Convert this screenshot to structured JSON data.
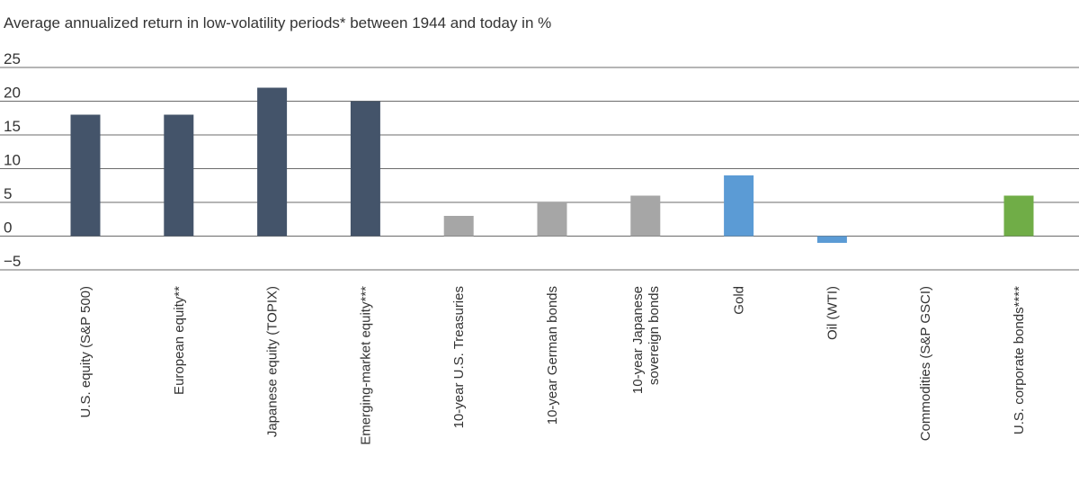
{
  "chart_data": {
    "type": "bar",
    "title": "Average annualized return in low-volatility periods* between 1944 and today in %",
    "xlabel": "",
    "ylabel": "",
    "ylim": [
      -5,
      25
    ],
    "yticks": [
      "25",
      "20",
      "15",
      "10",
      "5",
      "0",
      "−5"
    ],
    "ytick_values": [
      25,
      20,
      15,
      10,
      5,
      0,
      -5
    ],
    "grid": true,
    "categories": [
      "U.S. equity (S&P 500)",
      "European equity**",
      "Japanese equity (TOPIX)",
      "Emerging-market equity***",
      "10-year U.S. Treasuries",
      "10-year German bonds",
      "10-year Japanese sovereign bonds",
      "Gold",
      "Oil (WTI)",
      "Commodities (S&P GSCI)",
      "U.S. corporate bonds****"
    ],
    "category_lines": [
      [
        "U.S. equity (S&P 500)"
      ],
      [
        "European equity**"
      ],
      [
        "Japanese equity (TOPIX)"
      ],
      [
        "Emerging-market equity***"
      ],
      [
        "10-year U.S. Treasuries"
      ],
      [
        "10-year German bonds"
      ],
      [
        "10-year Japanese",
        "sovereign bonds"
      ],
      [
        "Gold"
      ],
      [
        "Oil (WTI)"
      ],
      [
        "Commodities (S&P GSCI)"
      ],
      [
        "U.S. corporate bonds****"
      ]
    ],
    "values": [
      18,
      18,
      22,
      20,
      3,
      5,
      6,
      9,
      -1,
      0,
      6
    ],
    "colors": [
      "#44546a",
      "#44546a",
      "#44546a",
      "#44546a",
      "#a6a6a6",
      "#a6a6a6",
      "#a6a6a6",
      "#5b9bd5",
      "#5b9bd5",
      "#5b9bd5",
      "#70ad47"
    ]
  }
}
